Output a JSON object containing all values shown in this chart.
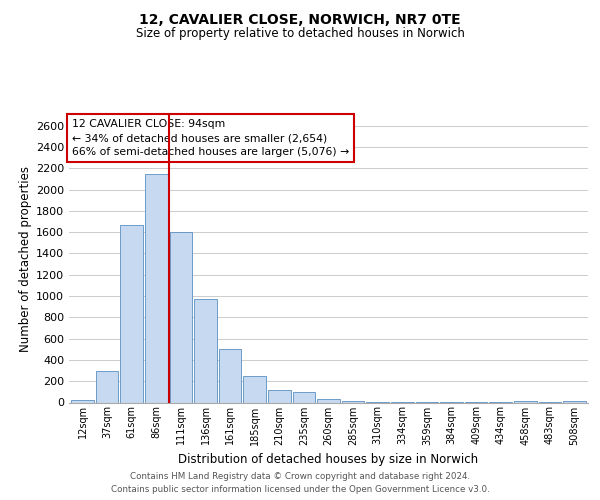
{
  "title": "12, CAVALIER CLOSE, NORWICH, NR7 0TE",
  "subtitle": "Size of property relative to detached houses in Norwich",
  "xlabel": "Distribution of detached houses by size in Norwich",
  "ylabel": "Number of detached properties",
  "bar_labels": [
    "12sqm",
    "37sqm",
    "61sqm",
    "86sqm",
    "111sqm",
    "136sqm",
    "161sqm",
    "185sqm",
    "210sqm",
    "235sqm",
    "260sqm",
    "285sqm",
    "310sqm",
    "334sqm",
    "359sqm",
    "384sqm",
    "409sqm",
    "434sqm",
    "458sqm",
    "483sqm",
    "508sqm"
  ],
  "bar_values": [
    20,
    295,
    1670,
    2150,
    1600,
    970,
    505,
    250,
    120,
    95,
    35,
    18,
    8,
    5,
    3,
    2,
    2,
    1,
    10,
    1,
    15
  ],
  "bar_color": "#c6d9f0",
  "bar_edge_color": "#5a8fc3",
  "ylim": [
    0,
    2700
  ],
  "yticks": [
    0,
    200,
    400,
    600,
    800,
    1000,
    1200,
    1400,
    1600,
    1800,
    2000,
    2200,
    2400,
    2600
  ],
  "vline_color": "#cc0000",
  "annotation_title": "12 CAVALIER CLOSE: 94sqm",
  "annotation_line1": "← 34% of detached houses are smaller (2,654)",
  "annotation_line2": "66% of semi-detached houses are larger (5,076) →",
  "annotation_box_color": "#ffffff",
  "annotation_box_edge": "#cc0000",
  "footer1": "Contains HM Land Registry data © Crown copyright and database right 2024.",
  "footer2": "Contains public sector information licensed under the Open Government Licence v3.0.",
  "background_color": "#ffffff",
  "grid_color": "#cccccc"
}
